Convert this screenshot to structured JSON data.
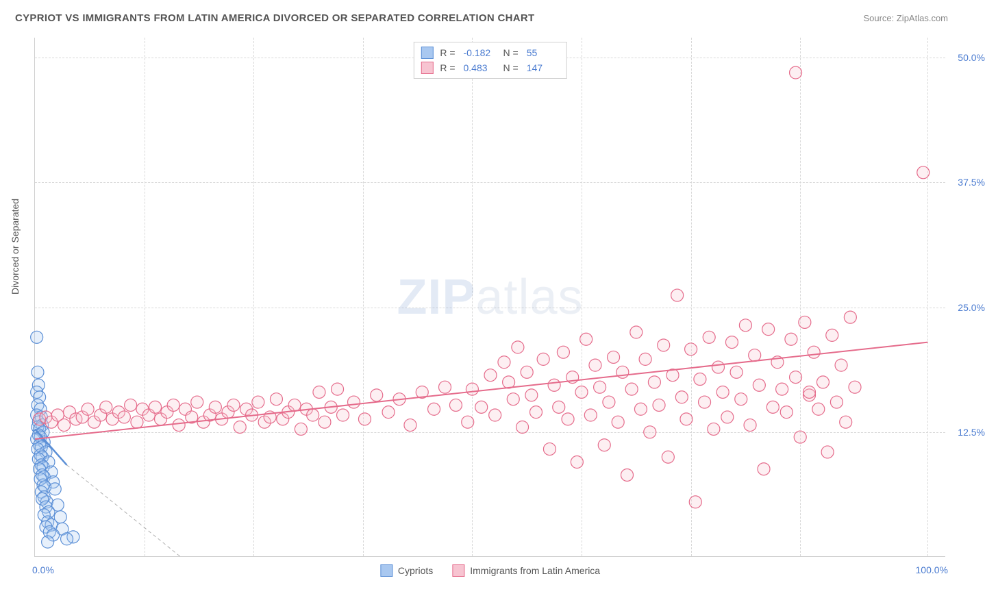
{
  "title": "CYPRIOT VS IMMIGRANTS FROM LATIN AMERICA DIVORCED OR SEPARATED CORRELATION CHART",
  "source": "Source: ZipAtlas.com",
  "y_axis_label": "Divorced or Separated",
  "watermark_zip": "ZIP",
  "watermark_atlas": "atlas",
  "chart": {
    "type": "scatter_with_regression",
    "xlim": [
      0,
      100
    ],
    "ylim": [
      0,
      52
    ],
    "x_ticks": {
      "min_label": "0.0%",
      "max_label": "100.0%",
      "grid_positions": [
        12,
        24,
        36,
        48,
        60,
        72,
        84,
        98
      ]
    },
    "y_ticks": [
      {
        "value": 12.5,
        "label": "12.5%"
      },
      {
        "value": 25.0,
        "label": "25.0%"
      },
      {
        "value": 37.5,
        "label": "37.5%"
      },
      {
        "value": 50.0,
        "label": "50.0%"
      }
    ],
    "background_color": "#ffffff",
    "grid_color": "#d8d8d8",
    "marker_radius": 9,
    "marker_fill_opacity": 0.28,
    "series": [
      {
        "name": "Cypriots",
        "color_fill": "#a9c8f0",
        "color_stroke": "#5b8fd6",
        "r": -0.182,
        "n": 55,
        "regression": {
          "x1": 0,
          "y1": 12.8,
          "x2": 3.5,
          "y2": 9.2,
          "dashed_ext_x2": 16,
          "dashed_ext_y2": 0
        },
        "points": [
          [
            0.2,
            22.0
          ],
          [
            0.3,
            18.5
          ],
          [
            0.4,
            17.2
          ],
          [
            0.2,
            16.5
          ],
          [
            0.5,
            16.0
          ],
          [
            0.3,
            15.2
          ],
          [
            0.6,
            14.8
          ],
          [
            0.2,
            14.2
          ],
          [
            0.7,
            14.0
          ],
          [
            0.4,
            13.5
          ],
          [
            0.8,
            13.2
          ],
          [
            0.3,
            13.0
          ],
          [
            0.5,
            12.8
          ],
          [
            0.9,
            12.5
          ],
          [
            0.4,
            12.2
          ],
          [
            0.6,
            12.0
          ],
          [
            0.2,
            11.8
          ],
          [
            1.0,
            11.5
          ],
          [
            0.5,
            11.2
          ],
          [
            0.7,
            11.0
          ],
          [
            0.3,
            10.8
          ],
          [
            1.2,
            10.5
          ],
          [
            0.6,
            10.2
          ],
          [
            0.8,
            10.0
          ],
          [
            0.4,
            9.8
          ],
          [
            1.5,
            9.5
          ],
          [
            0.7,
            9.2
          ],
          [
            0.9,
            9.0
          ],
          [
            0.5,
            8.8
          ],
          [
            1.8,
            8.5
          ],
          [
            0.8,
            8.2
          ],
          [
            1.0,
            8.0
          ],
          [
            0.6,
            7.8
          ],
          [
            2.0,
            7.5
          ],
          [
            0.9,
            7.2
          ],
          [
            1.1,
            7.0
          ],
          [
            0.7,
            6.5
          ],
          [
            2.2,
            6.8
          ],
          [
            1.0,
            6.0
          ],
          [
            1.3,
            5.5
          ],
          [
            0.8,
            5.8
          ],
          [
            2.5,
            5.2
          ],
          [
            1.2,
            5.0
          ],
          [
            1.5,
            4.5
          ],
          [
            1.0,
            4.2
          ],
          [
            2.8,
            4.0
          ],
          [
            1.4,
            3.5
          ],
          [
            1.8,
            3.2
          ],
          [
            1.2,
            3.0
          ],
          [
            3.0,
            2.8
          ],
          [
            1.6,
            2.5
          ],
          [
            2.0,
            2.2
          ],
          [
            4.2,
            2.0
          ],
          [
            3.5,
            1.8
          ],
          [
            1.4,
            1.5
          ]
        ]
      },
      {
        "name": "Immigrants from Latin America",
        "color_fill": "#f7c4d1",
        "color_stroke": "#e56b8b",
        "r": 0.483,
        "n": 147,
        "regression": {
          "x1": 0,
          "y1": 11.8,
          "x2": 98,
          "y2": 21.5
        },
        "points": [
          [
            0.5,
            13.8
          ],
          [
            1.2,
            14.0
          ],
          [
            1.8,
            13.5
          ],
          [
            2.5,
            14.2
          ],
          [
            3.2,
            13.2
          ],
          [
            3.8,
            14.5
          ],
          [
            4.5,
            13.8
          ],
          [
            5.2,
            14.0
          ],
          [
            5.8,
            14.8
          ],
          [
            6.5,
            13.5
          ],
          [
            7.2,
            14.2
          ],
          [
            7.8,
            15.0
          ],
          [
            8.5,
            13.8
          ],
          [
            9.2,
            14.5
          ],
          [
            9.8,
            14.0
          ],
          [
            10.5,
            15.2
          ],
          [
            11.2,
            13.5
          ],
          [
            11.8,
            14.8
          ],
          [
            12.5,
            14.2
          ],
          [
            13.2,
            15.0
          ],
          [
            13.8,
            13.8
          ],
          [
            14.5,
            14.5
          ],
          [
            15.2,
            15.2
          ],
          [
            15.8,
            13.2
          ],
          [
            16.5,
            14.8
          ],
          [
            17.2,
            14.0
          ],
          [
            17.8,
            15.5
          ],
          [
            18.5,
            13.5
          ],
          [
            19.2,
            14.2
          ],
          [
            19.8,
            15.0
          ],
          [
            20.5,
            13.8
          ],
          [
            21.2,
            14.5
          ],
          [
            21.8,
            15.2
          ],
          [
            22.5,
            13.0
          ],
          [
            23.2,
            14.8
          ],
          [
            23.8,
            14.2
          ],
          [
            24.5,
            15.5
          ],
          [
            25.2,
            13.5
          ],
          [
            25.8,
            14.0
          ],
          [
            26.5,
            15.8
          ],
          [
            27.2,
            13.8
          ],
          [
            27.8,
            14.5
          ],
          [
            28.5,
            15.2
          ],
          [
            29.2,
            12.8
          ],
          [
            29.8,
            14.8
          ],
          [
            30.5,
            14.2
          ],
          [
            31.2,
            16.5
          ],
          [
            31.8,
            13.5
          ],
          [
            32.5,
            15.0
          ],
          [
            33.2,
            16.8
          ],
          [
            33.8,
            14.2
          ],
          [
            35.0,
            15.5
          ],
          [
            36.2,
            13.8
          ],
          [
            37.5,
            16.2
          ],
          [
            38.8,
            14.5
          ],
          [
            40.0,
            15.8
          ],
          [
            41.2,
            13.2
          ],
          [
            42.5,
            16.5
          ],
          [
            43.8,
            14.8
          ],
          [
            45.0,
            17.0
          ],
          [
            46.2,
            15.2
          ],
          [
            47.5,
            13.5
          ],
          [
            48.0,
            16.8
          ],
          [
            49.0,
            15.0
          ],
          [
            50.0,
            18.2
          ],
          [
            50.5,
            14.2
          ],
          [
            51.5,
            19.5
          ],
          [
            52.0,
            17.5
          ],
          [
            52.5,
            15.8
          ],
          [
            53.0,
            21.0
          ],
          [
            53.5,
            13.0
          ],
          [
            54.0,
            18.5
          ],
          [
            54.5,
            16.2
          ],
          [
            55.0,
            14.5
          ],
          [
            55.8,
            19.8
          ],
          [
            56.5,
            10.8
          ],
          [
            57.0,
            17.2
          ],
          [
            57.5,
            15.0
          ],
          [
            58.0,
            20.5
          ],
          [
            58.5,
            13.8
          ],
          [
            59.0,
            18.0
          ],
          [
            59.5,
            9.5
          ],
          [
            60.0,
            16.5
          ],
          [
            60.5,
            21.8
          ],
          [
            61.0,
            14.2
          ],
          [
            61.5,
            19.2
          ],
          [
            62.0,
            17.0
          ],
          [
            62.5,
            11.2
          ],
          [
            63.0,
            15.5
          ],
          [
            63.5,
            20.0
          ],
          [
            64.0,
            13.5
          ],
          [
            64.5,
            18.5
          ],
          [
            65.0,
            8.2
          ],
          [
            65.5,
            16.8
          ],
          [
            66.0,
            22.5
          ],
          [
            66.5,
            14.8
          ],
          [
            67.0,
            19.8
          ],
          [
            67.5,
            12.5
          ],
          [
            68.0,
            17.5
          ],
          [
            68.5,
            15.2
          ],
          [
            69.0,
            21.2
          ],
          [
            69.5,
            10.0
          ],
          [
            70.0,
            18.2
          ],
          [
            70.5,
            26.2
          ],
          [
            71.0,
            16.0
          ],
          [
            71.5,
            13.8
          ],
          [
            72.0,
            20.8
          ],
          [
            72.5,
            5.5
          ],
          [
            73.0,
            17.8
          ],
          [
            73.5,
            15.5
          ],
          [
            74.0,
            22.0
          ],
          [
            74.5,
            12.8
          ],
          [
            75.0,
            19.0
          ],
          [
            75.5,
            16.5
          ],
          [
            76.0,
            14.0
          ],
          [
            76.5,
            21.5
          ],
          [
            77.0,
            18.5
          ],
          [
            77.5,
            15.8
          ],
          [
            78.0,
            23.2
          ],
          [
            78.5,
            13.2
          ],
          [
            79.0,
            20.2
          ],
          [
            79.5,
            17.2
          ],
          [
            80.0,
            8.8
          ],
          [
            80.5,
            22.8
          ],
          [
            81.0,
            15.0
          ],
          [
            81.5,
            19.5
          ],
          [
            82.0,
            16.8
          ],
          [
            82.5,
            14.5
          ],
          [
            83.0,
            21.8
          ],
          [
            83.5,
            18.0
          ],
          [
            84.0,
            12.0
          ],
          [
            84.5,
            23.5
          ],
          [
            85.0,
            16.2
          ],
          [
            85.5,
            20.5
          ],
          [
            86.0,
            14.8
          ],
          [
            86.5,
            17.5
          ],
          [
            87.0,
            10.5
          ],
          [
            87.5,
            22.2
          ],
          [
            88.0,
            15.5
          ],
          [
            88.5,
            19.2
          ],
          [
            89.0,
            13.5
          ],
          [
            89.5,
            24.0
          ],
          [
            90.0,
            17.0
          ],
          [
            83.5,
            48.5
          ],
          [
            97.5,
            38.5
          ],
          [
            85.0,
            16.5
          ]
        ]
      }
    ]
  },
  "legend_top": {
    "r_label": "R =",
    "n_label": "N ="
  },
  "legend_bottom": [
    {
      "swatch_fill": "#a9c8f0",
      "swatch_stroke": "#5b8fd6",
      "label": "Cypriots"
    },
    {
      "swatch_fill": "#f7c4d1",
      "swatch_stroke": "#e56b8b",
      "label": "Immigrants from Latin America"
    }
  ]
}
